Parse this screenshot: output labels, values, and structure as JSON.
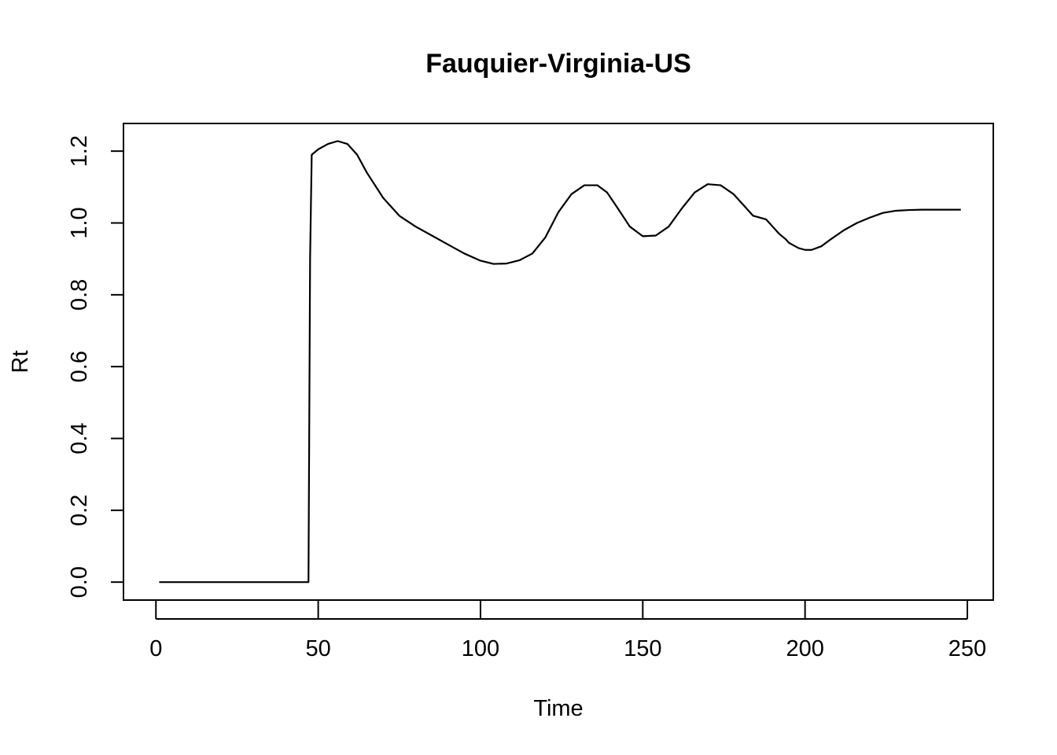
{
  "chart_data": {
    "type": "line",
    "title": "Fauquier-Virginia-US",
    "xlabel": "Time",
    "ylabel": "Rt",
    "xlim": [
      -10,
      258
    ],
    "ylim": [
      -0.05,
      1.277
    ],
    "x_ticks": [
      0,
      50,
      100,
      150,
      200,
      250
    ],
    "x_tick_labels": [
      "0",
      "50",
      "100",
      "150",
      "200",
      "250"
    ],
    "y_ticks": [
      0.0,
      0.2,
      0.4,
      0.6,
      0.8,
      1.0,
      1.2
    ],
    "y_tick_labels": [
      "0.0",
      "0.2",
      "0.4",
      "0.6",
      "0.8",
      "1.0",
      "1.2"
    ],
    "grid": false,
    "series": [
      {
        "color": "#000000",
        "x": [
          1,
          10,
          20,
          30,
          40,
          47,
          47.5,
          48,
          50,
          53,
          56,
          59,
          62,
          65,
          70,
          75,
          80,
          85,
          90,
          95,
          100,
          104,
          108,
          112,
          116,
          120,
          124,
          128,
          132,
          136,
          139,
          142,
          146,
          150,
          154,
          158,
          162,
          166,
          170,
          174,
          178,
          181,
          184,
          188,
          189,
          190,
          192,
          194,
          195,
          196,
          198,
          200,
          202,
          205,
          208,
          212,
          216,
          220,
          224,
          228,
          232,
          236,
          240,
          244,
          248
        ],
        "y": [
          0,
          0,
          0,
          0,
          0,
          0,
          0.9,
          1.19,
          1.205,
          1.22,
          1.228,
          1.22,
          1.19,
          1.14,
          1.07,
          1.02,
          0.99,
          0.965,
          0.94,
          0.915,
          0.895,
          0.886,
          0.887,
          0.896,
          0.915,
          0.96,
          1.03,
          1.08,
          1.105,
          1.105,
          1.085,
          1.045,
          0.99,
          0.963,
          0.965,
          0.99,
          1.04,
          1.085,
          1.108,
          1.105,
          1.08,
          1.05,
          1.02,
          1.01,
          1.0,
          0.99,
          0.97,
          0.955,
          0.945,
          0.94,
          0.93,
          0.925,
          0.925,
          0.935,
          0.955,
          0.98,
          1.0,
          1.015,
          1.028,
          1.034,
          1.036,
          1.037,
          1.037,
          1.037,
          1.037
        ]
      }
    ]
  }
}
